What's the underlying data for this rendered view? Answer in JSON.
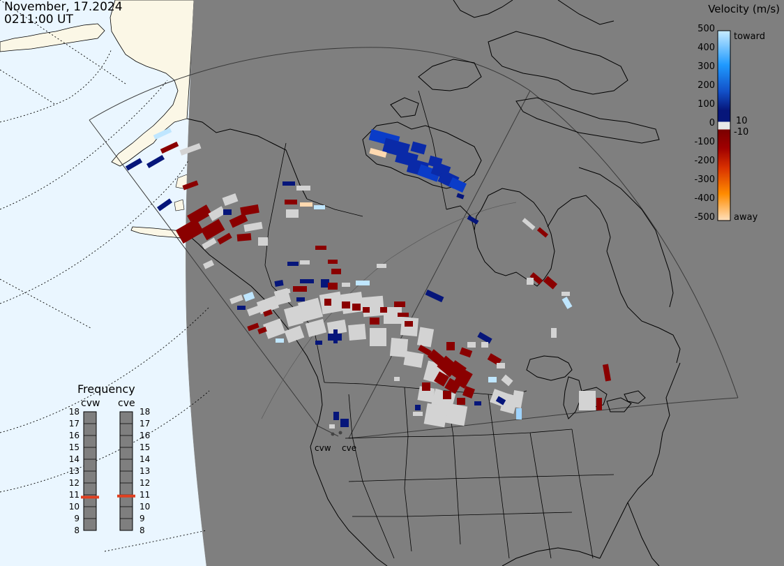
{
  "header": {
    "date": "November, 17.2024",
    "time": "0211:00 UT"
  },
  "legend": {
    "title": "Velocity (m/s)",
    "ticks": [
      "500",
      "400",
      "300",
      "200",
      "100",
      "0",
      "-100",
      "-200",
      "-300",
      "-400",
      "-500"
    ],
    "label_10": "10",
    "label_neg10": "-10",
    "toward": "toward",
    "away": "away",
    "colors": {
      "toward_light": "#bfe6ff",
      "toward_mid": "#1f8fff",
      "toward_dark": "#0a2aa8",
      "toward_deep": "#06167a",
      "zero_band": "#f0f0f0",
      "away_dark": "#8a0000",
      "away_mid": "#d03000",
      "away_orange": "#ff8a00",
      "away_light": "#ffd9b0"
    }
  },
  "frequency": {
    "title": "Frequency",
    "radars": [
      {
        "name": "cvw",
        "value_mhz": 10.8
      },
      {
        "name": "cve",
        "value_mhz": 10.9
      }
    ],
    "scale": [
      "18",
      "17",
      "16",
      "15",
      "14",
      "13",
      "12",
      "11",
      "10",
      "9",
      "8"
    ],
    "marker_color": "#e04020"
  },
  "map": {
    "radar_labels": [
      "cvw",
      "cve"
    ],
    "land_color": "#7f7f7f",
    "ocean_color": "#eaf6ff",
    "daylight_land_color": "#fbf7e6",
    "scatter_grey": "#d3d3d3",
    "near_zero": "#d3d3d3"
  }
}
